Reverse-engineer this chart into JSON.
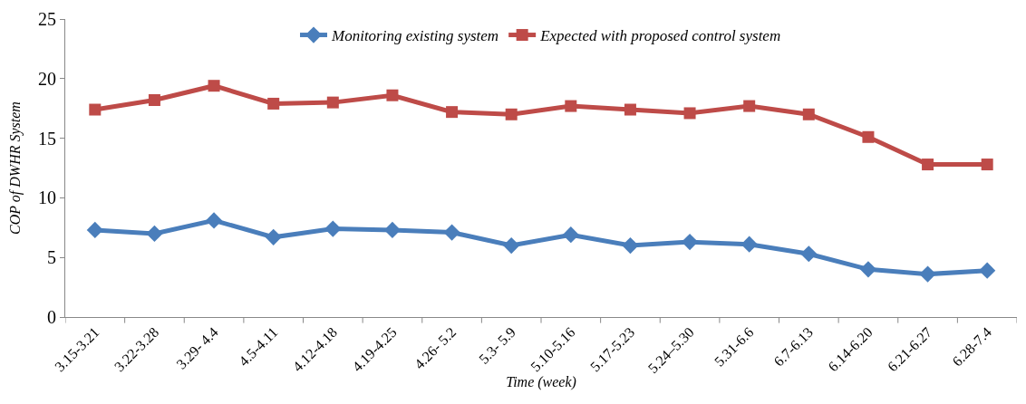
{
  "chart_data": {
    "type": "line",
    "xlabel": "Time (week)",
    "ylabel": "COP of DWHR System",
    "categories": [
      "3.15-3.21",
      "3.22-3.28",
      "3.29- 4.4",
      "4.5-4.11",
      "4.12-4.18",
      "4.19-4.25",
      "4.26- 5.2",
      "5.3- 5.9",
      "5.10-5.16",
      "5.17-5.23",
      "5.24–5.30",
      "5.31-6.6",
      "6.7-6.13",
      "6.14-6.20",
      "6.21-6.27",
      "6.28-7.4"
    ],
    "series": [
      {
        "name": "Monitoring existing system",
        "color": "#4a7ebb",
        "marker": "diamond",
        "values": [
          7.3,
          7.0,
          8.1,
          6.7,
          7.4,
          7.3,
          7.1,
          6.0,
          6.9,
          6.0,
          6.3,
          6.1,
          5.3,
          4.0,
          3.6,
          3.9
        ]
      },
      {
        "name": "Expected with proposed control system",
        "color": "#be4b48",
        "marker": "square",
        "values": [
          17.4,
          18.2,
          19.4,
          17.9,
          18.0,
          18.6,
          17.2,
          17.0,
          17.7,
          17.4,
          17.1,
          17.7,
          17.0,
          15.1,
          12.8,
          12.8
        ]
      }
    ],
    "ylim": [
      0,
      25
    ],
    "yticks": [
      0,
      5,
      10,
      15,
      20,
      25
    ],
    "legend": "top",
    "line_style": "solid"
  }
}
